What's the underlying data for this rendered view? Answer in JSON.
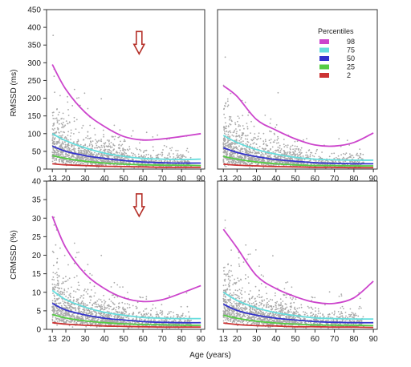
{
  "chart_data": [
    {
      "type": "scatter",
      "panel": "top-left",
      "ylabel": "RMSSD (ms)",
      "xlim": [
        10,
        92
      ],
      "ylim": [
        0,
        450
      ],
      "x_ticks": [
        13,
        20,
        30,
        40,
        50,
        60,
        70,
        80,
        90
      ],
      "y_ticks": [
        0,
        50,
        100,
        150,
        200,
        250,
        300,
        350,
        400,
        450
      ],
      "annotation": "down-arrow-at-age-58",
      "annotation_x": 58,
      "annotation_y": 325,
      "series": [
        {
          "name": "98",
          "x": [
            13,
            20,
            30,
            40,
            50,
            60,
            70,
            80,
            90
          ],
          "values": [
            295,
            225,
            160,
            120,
            92,
            82,
            85,
            92,
            100
          ]
        },
        {
          "name": "75",
          "x": [
            13,
            20,
            30,
            40,
            50,
            60,
            70,
            80,
            90
          ],
          "values": [
            100,
            80,
            60,
            45,
            36,
            30,
            28,
            27,
            28
          ]
        },
        {
          "name": "50",
          "x": [
            13,
            20,
            30,
            40,
            50,
            60,
            70,
            80,
            90
          ],
          "values": [
            65,
            50,
            38,
            30,
            24,
            20,
            18,
            17,
            17
          ]
        },
        {
          "name": "25",
          "x": [
            13,
            20,
            30,
            40,
            50,
            60,
            70,
            80,
            90
          ],
          "values": [
            38,
            30,
            22,
            17,
            14,
            12,
            11,
            11,
            10
          ]
        },
        {
          "name": "2",
          "x": [
            13,
            20,
            30,
            40,
            50,
            60,
            70,
            80,
            90
          ],
          "values": [
            15,
            12,
            10,
            8,
            7,
            6,
            5,
            5,
            5
          ]
        }
      ]
    },
    {
      "type": "scatter",
      "panel": "top-right",
      "ylabel": "",
      "xlim": [
        10,
        92
      ],
      "ylim": [
        0,
        450
      ],
      "x_ticks": [
        13,
        20,
        30,
        40,
        50,
        60,
        70,
        80,
        90
      ],
      "y_ticks": [],
      "series": [
        {
          "name": "98",
          "x": [
            13,
            20,
            30,
            40,
            50,
            60,
            70,
            80,
            90
          ],
          "values": [
            235,
            205,
            140,
            110,
            85,
            68,
            65,
            75,
            102
          ]
        },
        {
          "name": "75",
          "x": [
            13,
            20,
            30,
            40,
            50,
            60,
            70,
            80,
            90
          ],
          "values": [
            95,
            75,
            55,
            42,
            33,
            28,
            26,
            25,
            25
          ]
        },
        {
          "name": "50",
          "x": [
            13,
            20,
            30,
            40,
            50,
            60,
            70,
            80,
            90
          ],
          "values": [
            60,
            47,
            35,
            27,
            22,
            18,
            16,
            15,
            15
          ]
        },
        {
          "name": "25",
          "x": [
            13,
            20,
            30,
            40,
            50,
            60,
            70,
            80,
            90
          ],
          "values": [
            36,
            28,
            20,
            15,
            12,
            10,
            10,
            9,
            9
          ]
        },
        {
          "name": "2",
          "x": [
            13,
            20,
            30,
            40,
            50,
            60,
            70,
            80,
            90
          ],
          "values": [
            14,
            11,
            9,
            7,
            6,
            5,
            5,
            4,
            4
          ]
        }
      ]
    },
    {
      "type": "scatter",
      "panel": "bottom-left",
      "ylabel": "CRMSSD (%)",
      "xlim": [
        10,
        92
      ],
      "ylim": [
        0,
        40
      ],
      "x_ticks": [
        13,
        20,
        30,
        40,
        50,
        60,
        70,
        80,
        90
      ],
      "y_ticks": [
        0,
        5,
        10,
        15,
        20,
        25,
        30,
        35,
        40
      ],
      "annotation": "down-arrow-at-age-58",
      "annotation_x": 58,
      "annotation_y": 30.5,
      "series": [
        {
          "name": "98",
          "x": [
            13,
            20,
            30,
            40,
            50,
            60,
            70,
            80,
            90
          ],
          "values": [
            30.5,
            22,
            15,
            11,
            8.5,
            7.5,
            8,
            9.8,
            11.8
          ]
        },
        {
          "name": "75",
          "x": [
            13,
            20,
            30,
            40,
            50,
            60,
            70,
            80,
            90
          ],
          "values": [
            10.5,
            8,
            6,
            4.6,
            3.8,
            3.2,
            3,
            2.9,
            2.9
          ]
        },
        {
          "name": "50",
          "x": [
            13,
            20,
            30,
            40,
            50,
            60,
            70,
            80,
            90
          ],
          "values": [
            7,
            5.2,
            3.9,
            3,
            2.5,
            2.1,
            1.9,
            1.8,
            1.8
          ]
        },
        {
          "name": "25",
          "x": [
            13,
            20,
            30,
            40,
            50,
            60,
            70,
            80,
            90
          ],
          "values": [
            4,
            3.1,
            2.3,
            1.8,
            1.5,
            1.3,
            1.2,
            1.1,
            1.1
          ]
        },
        {
          "name": "2",
          "x": [
            13,
            20,
            30,
            40,
            50,
            60,
            70,
            80,
            90
          ],
          "values": [
            1.8,
            1.4,
            1.1,
            0.9,
            0.8,
            0.7,
            0.6,
            0.6,
            0.6
          ]
        }
      ]
    },
    {
      "type": "scatter",
      "panel": "bottom-right",
      "ylabel": "",
      "xlim": [
        10,
        92
      ],
      "ylim": [
        0,
        40
      ],
      "x_ticks": [
        13,
        20,
        30,
        40,
        50,
        60,
        70,
        80,
        90
      ],
      "y_ticks": [],
      "series": [
        {
          "name": "98",
          "x": [
            13,
            20,
            30,
            40,
            50,
            60,
            70,
            80,
            90
          ],
          "values": [
            27,
            22,
            14.5,
            11,
            8.8,
            7.3,
            7,
            8.5,
            13
          ]
        },
        {
          "name": "75",
          "x": [
            13,
            20,
            30,
            40,
            50,
            60,
            70,
            80,
            90
          ],
          "values": [
            10,
            7.8,
            5.8,
            4.5,
            3.7,
            3.1,
            2.9,
            2.8,
            2.8
          ]
        },
        {
          "name": "50",
          "x": [
            13,
            20,
            30,
            40,
            50,
            60,
            70,
            80,
            90
          ],
          "values": [
            6.8,
            5.1,
            3.8,
            3,
            2.5,
            2.1,
            1.9,
            1.8,
            1.8
          ]
        },
        {
          "name": "25",
          "x": [
            13,
            20,
            30,
            40,
            50,
            60,
            70,
            80,
            90
          ],
          "values": [
            3.8,
            3,
            2.2,
            1.7,
            1.4,
            1.2,
            1.1,
            1.1,
            1
          ]
        },
        {
          "name": "2",
          "x": [
            13,
            20,
            30,
            40,
            50,
            60,
            70,
            80,
            90
          ],
          "values": [
            1.7,
            1.3,
            1,
            0.9,
            0.7,
            0.7,
            0.6,
            0.6,
            0.5
          ]
        }
      ]
    }
  ],
  "xlabel": "Age (years)",
  "legend": {
    "title": "Percentiles",
    "placement": "top-right",
    "entries": [
      {
        "label": "98",
        "color": "#cc44cc"
      },
      {
        "label": "75",
        "color": "#66dddd"
      },
      {
        "label": "50",
        "color": "#3333cc"
      },
      {
        "label": "25",
        "color": "#55cc44"
      },
      {
        "label": "2",
        "color": "#cc3333"
      }
    ]
  },
  "colors": {
    "scatter": "#a9a9a9",
    "arrow_fill": "#ffffff",
    "arrow_stroke": "#b5312a"
  }
}
